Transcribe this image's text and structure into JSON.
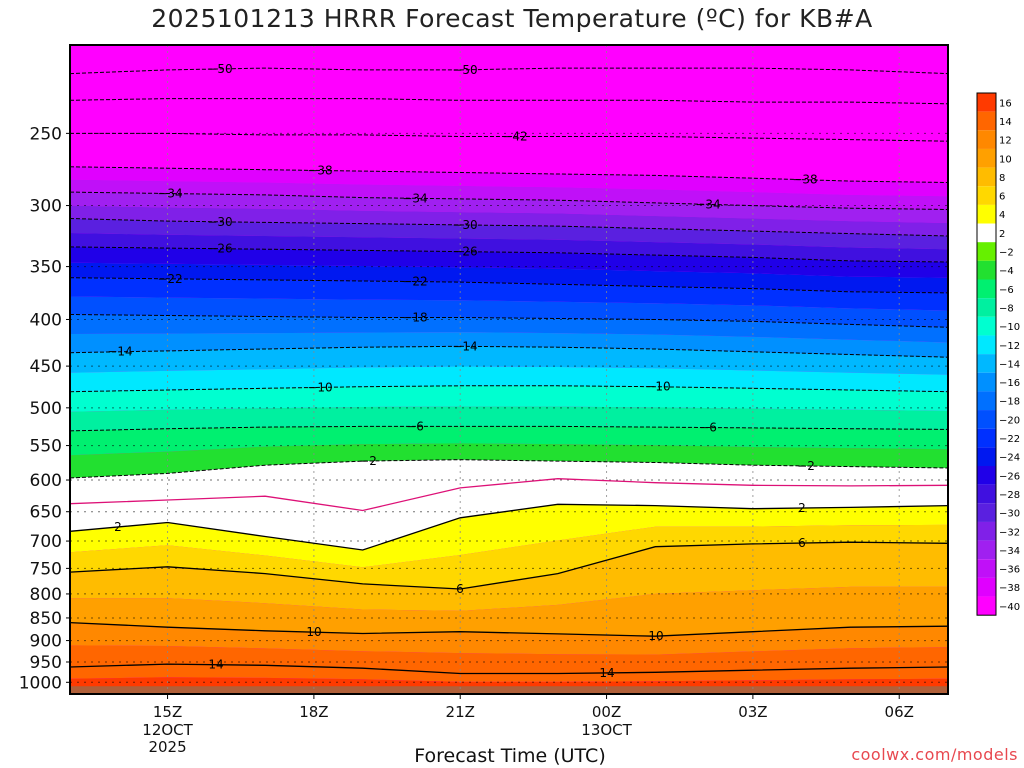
{
  "chart_data": {
    "type": "heatmap",
    "title": "2025101213 HRRR Forecast Temperature (ºC) for KB#A",
    "xlabel": "Forecast Time (UTC)",
    "ylabel": "",
    "y_scale": "log",
    "ylim": [
      1030,
      200
    ],
    "xlim": [
      "2025-10-12 13Z",
      "2025-10-13 07Z"
    ],
    "y_ticks": [
      250,
      300,
      350,
      400,
      450,
      500,
      550,
      600,
      650,
      700,
      750,
      800,
      850,
      900,
      950,
      1000
    ],
    "x_ticks": [
      {
        "value": "2025-10-12 15Z",
        "label": "15Z",
        "sub1": "12OCT",
        "sub2": "2025"
      },
      {
        "value": "2025-10-12 18Z",
        "label": "18Z",
        "sub1": "",
        "sub2": ""
      },
      {
        "value": "2025-10-12 21Z",
        "label": "21Z",
        "sub1": "",
        "sub2": ""
      },
      {
        "value": "2025-10-13 00Z",
        "label": "00Z",
        "sub1": "13OCT",
        "sub2": ""
      },
      {
        "value": "2025-10-13 03Z",
        "label": "03Z",
        "sub1": "",
        "sub2": ""
      },
      {
        "value": "2025-10-13 06Z",
        "label": "06Z",
        "sub1": "",
        "sub2": ""
      }
    ],
    "times": [
      "2025-10-12 13Z",
      "2025-10-12 15Z",
      "2025-10-12 17Z",
      "2025-10-12 19Z",
      "2025-10-12 21Z",
      "2025-10-12 23Z",
      "2025-10-13 01Z",
      "2025-10-13 03Z",
      "2025-10-13 05Z",
      "2025-10-13 07Z"
    ],
    "isotherms": [
      {
        "temp": -50,
        "label": "50",
        "p": [
          215,
          213,
          212,
          213,
          213,
          212,
          212,
          212,
          213,
          215
        ]
      },
      {
        "temp": -46,
        "label": "",
        "p": [
          230,
          229,
          229,
          229,
          230,
          230,
          230,
          231,
          231,
          232
        ]
      },
      {
        "temp": -42,
        "label": "42",
        "p": [
          250,
          250,
          251,
          251,
          252,
          252,
          252,
          253,
          254,
          255
        ]
      },
      {
        "temp": -38,
        "label": "38",
        "p": [
          272,
          273,
          274,
          275,
          276,
          277,
          278,
          280,
          282,
          283
        ]
      },
      {
        "temp": -34,
        "label": "34",
        "p": [
          290,
          291,
          292,
          294,
          295,
          296,
          298,
          300,
          302,
          303
        ]
      },
      {
        "temp": -30,
        "label": "30",
        "p": [
          310,
          312,
          313,
          314,
          315,
          316,
          318,
          320,
          322,
          324
        ]
      },
      {
        "temp": -26,
        "label": "26",
        "p": [
          333,
          334,
          335,
          336,
          337,
          338,
          340,
          342,
          345,
          346
        ]
      },
      {
        "temp": -22,
        "label": "22",
        "p": [
          360,
          361,
          362,
          363,
          364,
          366,
          368,
          370,
          373,
          374
        ]
      },
      {
        "temp": -18,
        "label": "18",
        "p": [
          395,
          396,
          397,
          398,
          398,
          399,
          400,
          402,
          405,
          408
        ]
      },
      {
        "temp": -14,
        "label": "14",
        "p": [
          435,
          433,
          431,
          429,
          428,
          429,
          431,
          434,
          437,
          440
        ]
      },
      {
        "temp": -10,
        "label": "10",
        "p": [
          480,
          478,
          476,
          474,
          473,
          473,
          474,
          476,
          478,
          480
        ]
      },
      {
        "temp": -6,
        "label": "6",
        "p": [
          530,
          527,
          525,
          524,
          524,
          524,
          525,
          526,
          527,
          528
        ]
      },
      {
        "temp": -2,
        "label": "2",
        "p": [
          597,
          590,
          578,
          572,
          570,
          572,
          574,
          578,
          580,
          582
        ]
      }
    ],
    "freezing_line": {
      "temp": 0,
      "color": "#dd1177",
      "p": [
        637,
        631,
        625,
        648,
        612,
        598,
        604,
        608,
        609,
        608
      ]
    },
    "warm_isotherms": [
      {
        "temp": 2,
        "label": "2",
        "p": [
          683,
          668,
          692,
          716,
          660,
          638,
          640,
          645,
          643,
          640
        ]
      },
      {
        "temp": 6,
        "label": "6",
        "p": [
          757,
          747,
          760,
          780,
          790,
          760,
          710,
          705,
          702,
          704
        ]
      },
      {
        "temp": 10,
        "label": "10",
        "p": [
          860,
          870,
          878,
          884,
          880,
          885,
          890,
          880,
          870,
          868
        ]
      },
      {
        "temp": 14,
        "label": "14",
        "p": [
          962,
          955,
          958,
          965,
          978,
          978,
          975,
          970,
          965,
          962
        ]
      }
    ],
    "colorbar": {
      "labels": [
        16,
        14,
        12,
        10,
        8,
        6,
        4,
        2,
        -2,
        -4,
        -6,
        -8,
        -10,
        -12,
        -14,
        -16,
        -18,
        -20,
        -22,
        -24,
        -26,
        -28,
        -30,
        -32,
        -34,
        -36,
        -38,
        -40
      ],
      "colors": [
        "#ff3a00",
        "#ff6600",
        "#ff8800",
        "#ffa000",
        "#ffbc00",
        "#ffd800",
        "#ffff00",
        "#ffffff",
        "#66f000",
        "#22e030",
        "#00f070",
        "#00f0a0",
        "#00ffd0",
        "#00e8ff",
        "#00b8ff",
        "#0090ff",
        "#0070ff",
        "#0050ff",
        "#0030ff",
        "#0018f0",
        "#2000e8",
        "#4010e0",
        "#5a20e0",
        "#8020e8",
        "#a020f0",
        "#c010f8",
        "#e000ff",
        "#ff00ff"
      ]
    }
  },
  "credit": "coolwx.com/models"
}
